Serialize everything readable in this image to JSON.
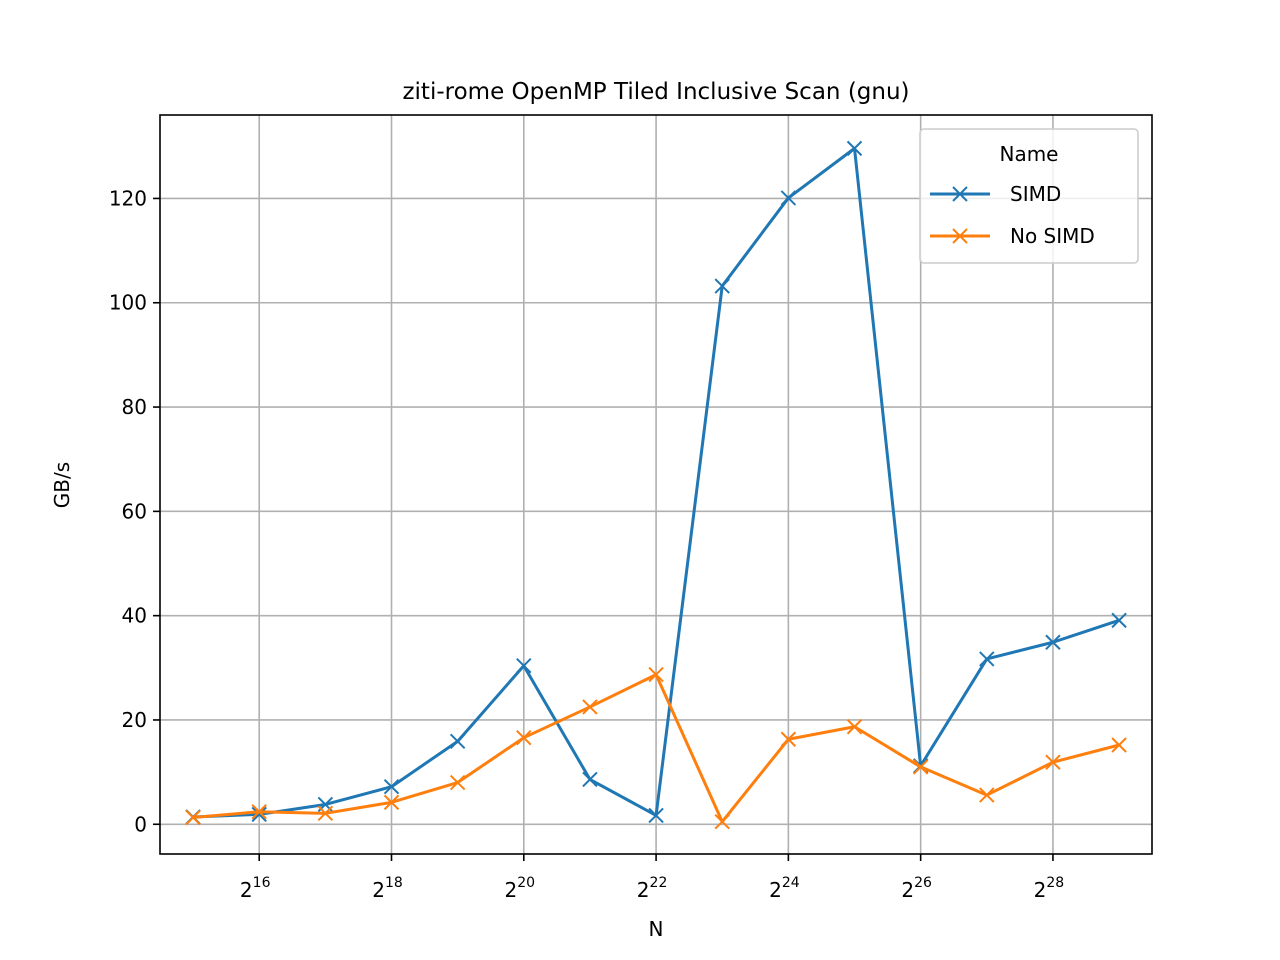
{
  "chart_data": {
    "type": "line",
    "title": "ziti-rome OpenMP Tiled Inclusive Scan (gnu)",
    "xlabel": "N",
    "ylabel": "GB/s",
    "x_scale": "log2",
    "x": [
      32768,
      65536,
      131072,
      262144,
      524288,
      1048576,
      2097152,
      4194304,
      8388608,
      16777216,
      33554432,
      67108864,
      134217728,
      268435456,
      536870912
    ],
    "xlim": [
      23170,
      758000000
    ],
    "ylim": [
      -5.7,
      136
    ],
    "x_ticks": [
      {
        "base": "2",
        "exp": "16",
        "value": 65536
      },
      {
        "base": "2",
        "exp": "18",
        "value": 262144
      },
      {
        "base": "2",
        "exp": "20",
        "value": 1048576
      },
      {
        "base": "2",
        "exp": "22",
        "value": 4194304
      },
      {
        "base": "2",
        "exp": "24",
        "value": 16777216
      },
      {
        "base": "2",
        "exp": "26",
        "value": 67108864
      },
      {
        "base": "2",
        "exp": "28",
        "value": 268435456
      }
    ],
    "y_ticks": [
      {
        "label": "0",
        "value": 0
      },
      {
        "label": "20",
        "value": 20
      },
      {
        "label": "40",
        "value": 40
      },
      {
        "label": "60",
        "value": 60
      },
      {
        "label": "80",
        "value": 80
      },
      {
        "label": "100",
        "value": 100
      },
      {
        "label": "120",
        "value": 120
      }
    ],
    "grid": true,
    "legend": {
      "title": "Name",
      "position": "top-right"
    },
    "marker": "x",
    "series": [
      {
        "name": "SIMD",
        "color": "#1f77b4",
        "values": [
          1.4,
          1.9,
          3.8,
          7.2,
          15.9,
          30.4,
          8.6,
          1.7,
          103.2,
          120.1,
          129.6,
          11.2,
          31.7,
          34.9,
          39.1
        ]
      },
      {
        "name": "No SIMD",
        "color": "#ff7f0e",
        "values": [
          1.3,
          2.4,
          2.1,
          4.2,
          8.0,
          16.6,
          22.5,
          28.7,
          0.5,
          16.3,
          18.7,
          11.0,
          5.6,
          11.9,
          15.2
        ]
      }
    ]
  }
}
